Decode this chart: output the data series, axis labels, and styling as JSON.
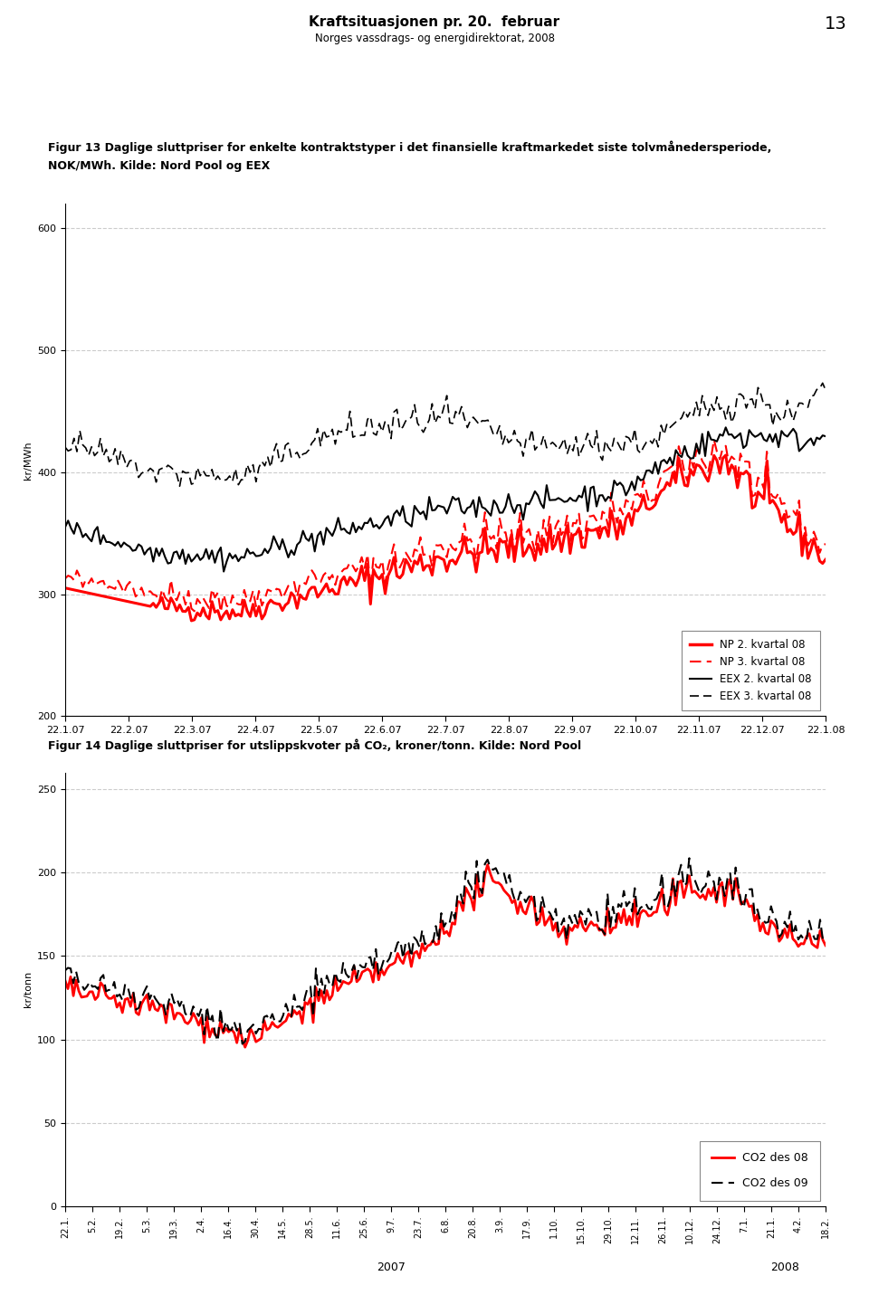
{
  "page_title": "Kraftsituasjonen pr. 20.  februar",
  "page_subtitle": "Norges vassdrags- og energidirektorat, 2008",
  "page_number": "13",
  "fig13_caption_line1": "Figur 13 Daglige sluttpriser for enkelte kontraktstyper i det finansielle kraftmarkedet siste tolvmånedersperiode,",
  "fig13_caption_line2": "NOK/MWh. Kilde: Nord Pool og EEX",
  "fig13_ylabel": "kr/MWh",
  "fig13_ylim": [
    200,
    620
  ],
  "fig13_yticks": [
    200,
    300,
    400,
    500,
    600
  ],
  "fig13_xticks": [
    "22.1.07",
    "22.2.07",
    "22.3.07",
    "22.4.07",
    "22.5.07",
    "22.6.07",
    "22.7.07",
    "22.8.07",
    "22.9.07",
    "22.10.07",
    "22.11.07",
    "22.12.07",
    "22.1.08"
  ],
  "fig14_caption": "Figur 14 Daglige sluttpriser for utslippskvoter på CO₂, kroner/tonn. Kilde: Nord Pool",
  "fig14_ylabel": "kr/tonn",
  "fig14_ylim": [
    0,
    260
  ],
  "fig14_yticks": [
    0,
    50,
    100,
    150,
    200,
    250
  ],
  "fig14_xticks_labels": [
    "22.1.",
    "5.2.",
    "19.2.",
    "5.3.",
    "19.3.",
    "2.4.",
    "16.4.",
    "30.4.",
    "14.5.",
    "28.5.",
    "11.6.",
    "25.6.",
    "9.7.",
    "23.7.",
    "6.8.",
    "20.8.",
    "3.9.",
    "17.9.",
    "1.10.",
    "15.10.",
    "29.10.",
    "12.11.",
    "26.11.",
    "10.12.",
    "24.12.",
    "7.1.",
    "21.1.",
    "4.2.",
    "18.2."
  ],
  "fig14_xlabel_years": [
    "2007",
    "2008"
  ],
  "background_color": "#ffffff",
  "grid_color": "#cccccc",
  "caption_fontsize": 9,
  "tick_fontsize": 8,
  "ylabel_fontsize": 8
}
